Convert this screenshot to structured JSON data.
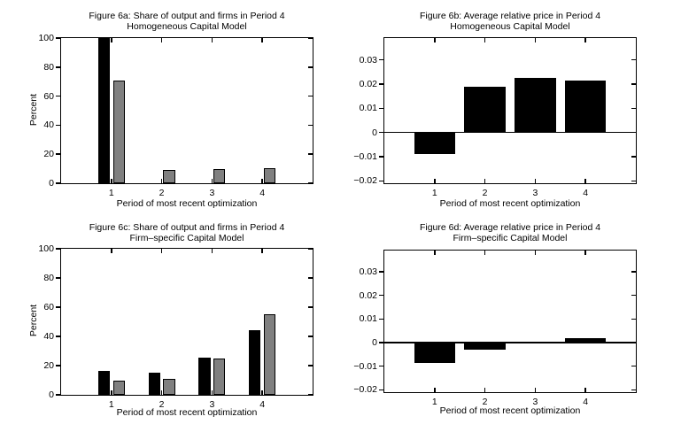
{
  "colors": {
    "black": "#000000",
    "gray": "#808080",
    "axis": "#000000",
    "background": "#ffffff",
    "text": "#000000"
  },
  "chart_data": [
    {
      "id": "fig6a",
      "type": "bar",
      "title_line1": "Figure 6a: Share of output and firms in Period 4",
      "title_line2": "Homogeneous Capital Model",
      "xlabel": "Period of most recent optimization",
      "ylabel": "Percent",
      "categories": [
        "1",
        "2",
        "3",
        "4"
      ],
      "series": [
        {
          "name": "output",
          "color": "black",
          "values": [
            100,
            0,
            0,
            0
          ]
        },
        {
          "name": "firms",
          "color": "gray",
          "values": [
            71,
            9,
            9.5,
            10.5
          ]
        }
      ],
      "xlim": [
        0,
        5
      ],
      "ylim": [
        0,
        100
      ],
      "xticks": [
        1,
        2,
        3,
        4
      ],
      "xtick_labels": [
        "1",
        "2",
        "3",
        "4"
      ],
      "yticks": [
        0,
        20,
        40,
        60,
        80,
        100
      ],
      "ytick_labels": [
        "0",
        "20",
        "40",
        "60",
        "80",
        "100"
      ],
      "zero_line": false,
      "grid": false,
      "legend": "none"
    },
    {
      "id": "fig6b",
      "type": "bar",
      "title_line1": "Figure 6b: Average relative price in Period 4",
      "title_line2": "Homogeneous Capital Model",
      "xlabel": "Period of most recent optimization",
      "ylabel": "",
      "categories": [
        "1",
        "2",
        "3",
        "4"
      ],
      "series": [
        {
          "name": "avg-relative-price",
          "color": "black",
          "values": [
            -0.009,
            0.019,
            0.0225,
            0.0215
          ]
        }
      ],
      "xlim": [
        0,
        5
      ],
      "ylim": [
        -0.021,
        0.039
      ],
      "xticks": [
        1,
        2,
        3,
        4
      ],
      "xtick_labels": [
        "1",
        "2",
        "3",
        "4"
      ],
      "yticks": [
        -0.02,
        -0.01,
        0,
        0.01,
        0.02,
        0.03
      ],
      "ytick_labels": [
        "−0.02",
        "−0.01",
        "0",
        "0.01",
        "0.02",
        "0.03"
      ],
      "zero_line": true,
      "grid": false,
      "legend": "none"
    },
    {
      "id": "fig6c",
      "type": "bar",
      "title_line1": "Figure 6c: Share of output and firms in Period 4",
      "title_line2": "Firm–specific Capital Model",
      "xlabel": "Period of most recent optimization",
      "ylabel": "Percent",
      "categories": [
        "1",
        "2",
        "3",
        "4"
      ],
      "series": [
        {
          "name": "output",
          "color": "black",
          "values": [
            16.5,
            15,
            25.5,
            44
          ]
        },
        {
          "name": "firms",
          "color": "gray",
          "values": [
            9.5,
            11,
            25,
            55
          ]
        }
      ],
      "xlim": [
        0,
        5
      ],
      "ylim": [
        0,
        100
      ],
      "xticks": [
        1,
        2,
        3,
        4
      ],
      "xtick_labels": [
        "1",
        "2",
        "3",
        "4"
      ],
      "yticks": [
        0,
        20,
        40,
        60,
        80,
        100
      ],
      "ytick_labels": [
        "0",
        "20",
        "40",
        "60",
        "80",
        "100"
      ],
      "zero_line": false,
      "grid": false,
      "legend": "none"
    },
    {
      "id": "fig6d",
      "type": "bar",
      "title_line1": "Figure 6d: Average relative price in Period 4",
      "title_line2": "Firm–specific Capital Model",
      "xlabel": "Period of most recent optimization",
      "ylabel": "",
      "categories": [
        "1",
        "2",
        "3",
        "4"
      ],
      "series": [
        {
          "name": "avg-relative-price",
          "color": "black",
          "values": [
            -0.0085,
            -0.003,
            0,
            0.002
          ]
        }
      ],
      "xlim": [
        0,
        5
      ],
      "ylim": [
        -0.021,
        0.039
      ],
      "xticks": [
        1,
        2,
        3,
        4
      ],
      "xtick_labels": [
        "1",
        "2",
        "3",
        "4"
      ],
      "yticks": [
        -0.02,
        -0.01,
        0,
        0.01,
        0.02,
        0.03
      ],
      "ytick_labels": [
        "−0.02",
        "−0.01",
        "0",
        "0.01",
        "0.02",
        "0.03"
      ],
      "zero_line": true,
      "grid": false,
      "legend": "none"
    }
  ]
}
